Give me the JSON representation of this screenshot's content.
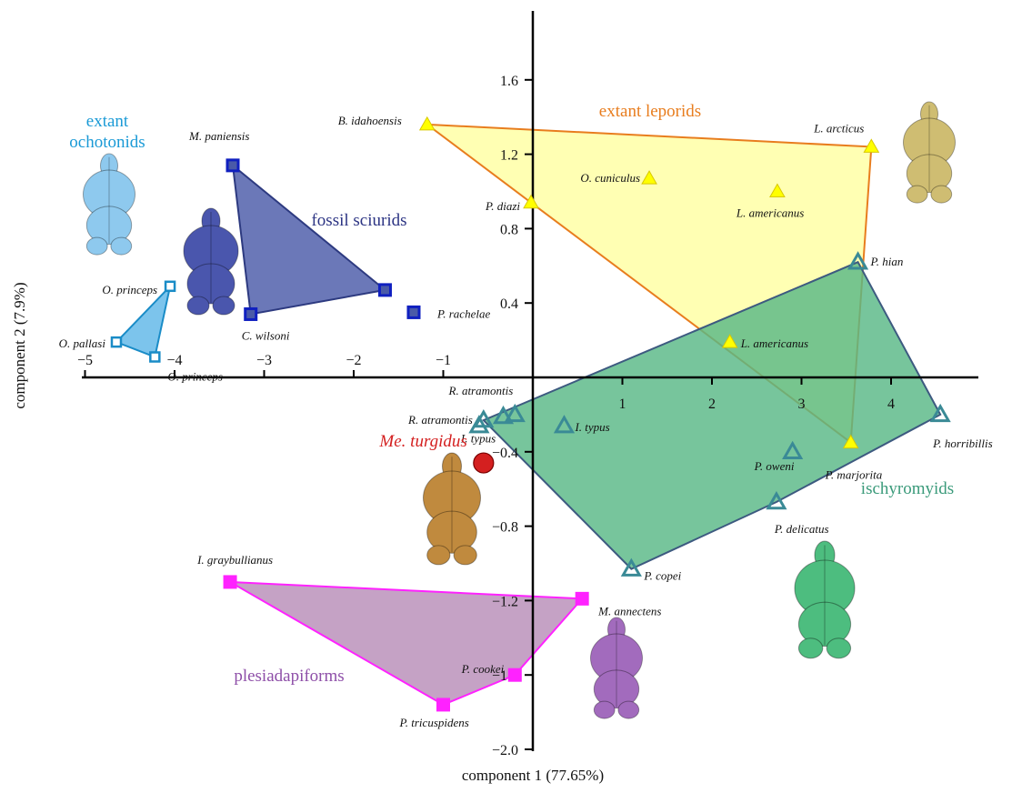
{
  "chart_data": {
    "type": "scatter",
    "xlabel": "component 1 (77.65%)",
    "ylabel": "component 2 (7.9%)",
    "xlim": [
      -5.0,
      4.9
    ],
    "ylim": [
      -2.05,
      1.98
    ],
    "x_ticks": [
      -5,
      -4,
      -3,
      -2,
      -1,
      1,
      2,
      3,
      4
    ],
    "y_ticks": [
      1.6,
      1.2,
      0.8,
      0.4,
      -0.4,
      -0.8,
      -1.2,
      -1.6,
      -2.0
    ],
    "x_tick_labels": [
      "−5",
      "−4",
      "−3",
      "−2",
      "−1",
      "1",
      "2",
      "3",
      "4"
    ],
    "y_tick_labels": [
      "1.6",
      "1.2",
      "0.8",
      "0.4",
      "−0.4",
      "−0.8",
      "−1.2",
      "−1.6",
      "−2.0"
    ],
    "groups": [
      {
        "name": "extant leporids",
        "marker": "triangle",
        "fill": "#ffff00",
        "hull_fill": "#ffff99",
        "hull_stroke": "#e87d1e",
        "label_color": "#e87d1e",
        "hull": [
          "B. idahoensis",
          "L. arcticus",
          "P. marjorita",
          "P. diazi"
        ],
        "points": [
          {
            "name": "B. idahoensis",
            "x": -1.18,
            "y": 1.36
          },
          {
            "name": "L. arcticus",
            "x": 3.78,
            "y": 1.24
          },
          {
            "name": "O. cuniculus",
            "x": 1.3,
            "y": 1.07
          },
          {
            "name": "L. americanus",
            "x": 2.73,
            "y": 1.0
          },
          {
            "name": "P. diazi",
            "x": -0.02,
            "y": 0.94
          },
          {
            "name": "L. americanus",
            "x": 2.2,
            "y": 0.19
          },
          {
            "name": "P. marjorita",
            "x": 3.55,
            "y": -0.35
          }
        ]
      },
      {
        "name": "fossil sciurids",
        "marker": "square",
        "fill": "#4a5aa8",
        "hull_fill": "#4a5aa8",
        "hull_stroke": "#2d3a80",
        "label_color": "#2b3383",
        "hull": [
          "M. paniensis",
          "P. rachelae",
          "C. wilsoni"
        ],
        "points": [
          {
            "name": "M. paniensis",
            "x": -3.35,
            "y": 1.14
          },
          {
            "name": "P. rachelae",
            "x": -1.65,
            "y": 0.47
          },
          {
            "name": "P. rachelae",
            "x": -1.33,
            "y": 0.35
          },
          {
            "name": "C. wilsoni",
            "x": -3.15,
            "y": 0.34
          }
        ]
      },
      {
        "name": "extant\nochotonids",
        "marker": "square",
        "fill": "#5fb7e8",
        "hull_fill": "#5fb7e8",
        "hull_stroke": "#1a8cc7",
        "label_color": "#1a9ad6",
        "hull": [
          "O. princeps",
          "O. pallasi",
          "O. princeps"
        ],
        "points": [
          {
            "name": "O. princeps",
            "x": -4.05,
            "y": 0.49
          },
          {
            "name": "O. pallasi",
            "x": -4.65,
            "y": 0.19
          },
          {
            "name": "O. princeps",
            "x": -4.22,
            "y": 0.11
          }
        ]
      },
      {
        "name": "ischyromyids",
        "marker": "triangle",
        "fill": "#59b886",
        "hull_fill": "#59b886",
        "hull_stroke": "#3d5a80",
        "label_color": "#3a9a7a",
        "hull": [
          "P. hian",
          "P. horribillis",
          "P. delicatus",
          "P. copei",
          "R. atramontis"
        ],
        "points": [
          {
            "name": "P. hian",
            "x": 3.63,
            "y": 0.62
          },
          {
            "name": "P. horribillis",
            "x": 4.55,
            "y": -0.2
          },
          {
            "name": "R. atramontis",
            "x": -0.55,
            "y": -0.23
          },
          {
            "name": "R. atramontis",
            "x": -0.2,
            "y": -0.2
          },
          {
            "name": "",
            "x": -0.33,
            "y": -0.21
          },
          {
            "name": "",
            "x": -0.6,
            "y": -0.26
          },
          {
            "name": "I. typus",
            "x": 0.35,
            "y": -0.26
          },
          {
            "name": "P. oweni",
            "x": 2.9,
            "y": -0.4
          },
          {
            "name": "P. delicatus",
            "x": 2.72,
            "y": -0.67
          },
          {
            "name": "P. copei",
            "x": 1.1,
            "y": -1.03
          }
        ]
      },
      {
        "name": "plesiadapiforms",
        "marker": "square",
        "fill": "#ff22ff",
        "hull_fill": "#b88db8",
        "hull_stroke": "#ff22ff",
        "label_color": "#8e4fa8",
        "hull": [
          "I. graybullianus",
          "M. annectens",
          "P. cookei",
          "P. tricuspidens"
        ],
        "points": [
          {
            "name": "I. graybullianus",
            "x": -3.38,
            "y": -1.1
          },
          {
            "name": "M. annectens",
            "x": 0.55,
            "y": -1.19
          },
          {
            "name": "P. cookei",
            "x": -0.2,
            "y": -1.6
          },
          {
            "name": "P. tricuspidens",
            "x": -1.0,
            "y": -1.76
          }
        ]
      }
    ],
    "highlight": {
      "name": "Me. turgidus",
      "x": -0.55,
      "y": -0.46,
      "color": "#d42020",
      "label_color": "#d42020",
      "marker": "circle"
    },
    "extra_labels": [
      {
        "text": "I. typus",
        "x": -0.6,
        "y": -0.33
      }
    ],
    "skull_images": [
      {
        "group": "extant ochotonids",
        "color": "#8ec9ee"
      },
      {
        "group": "fossil sciurids",
        "color": "#4a56ad"
      },
      {
        "group": "extant leporids",
        "color": "#cfbd72"
      },
      {
        "group": "Me. turgidus",
        "color": "#c08a3e"
      },
      {
        "group": "plesiadapiforms",
        "color": "#a26bbd"
      },
      {
        "group": "ischyromyids",
        "color": "#4dbd7f"
      }
    ]
  }
}
